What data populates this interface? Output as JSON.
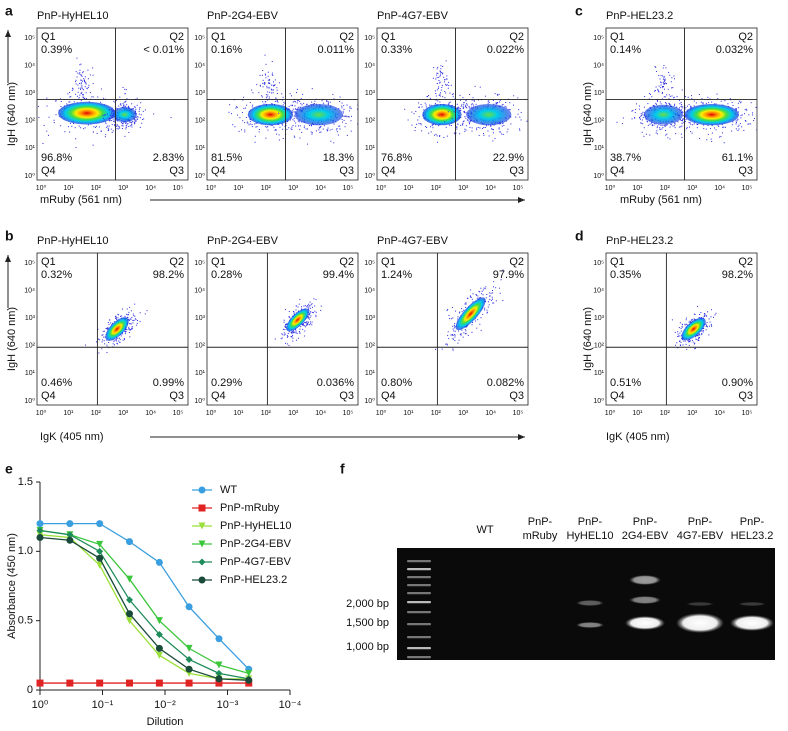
{
  "quadrant_names": [
    "Q1",
    "Q2",
    "Q3",
    "Q4"
  ],
  "flow_ticks": [
    "10⁰",
    "10¹",
    "10²",
    "10³",
    "10⁴",
    "10⁵"
  ],
  "panels": [
    {
      "letter": "a",
      "x_label": "mRuby (561 nm)",
      "y_label": "IgH (640 nm)",
      "plots": [
        {
          "title": "PnP-HyHEL10",
          "q1": "0.39%",
          "q2": "< 0.01%",
          "q3": "2.83%",
          "q4": "96.8%"
        },
        {
          "title": "PnP-2G4-EBV",
          "q1": "0.16%",
          "q2": "0.011%",
          "q3": "18.3%",
          "q4": "81.5%"
        },
        {
          "title": "PnP-4G7-EBV",
          "q1": "0.33%",
          "q2": "0.022%",
          "q3": "22.9%",
          "q4": "76.8%"
        }
      ]
    },
    {
      "letter": "c",
      "x_label": "mRuby (561 nm)",
      "y_label": "IgH (640 nm)",
      "plots": [
        {
          "title": "PnP-HEL23.2",
          "q1": "0.14%",
          "q2": "0.032%",
          "q3": "61.1%",
          "q4": "38.7%"
        }
      ]
    },
    {
      "letter": "b",
      "x_label": "IgK (405 nm)",
      "y_label": "IgH (640 nm)",
      "plots": [
        {
          "title": "PnP-HyHEL10",
          "q1": "0.32%",
          "q2": "98.2%",
          "q3": "0.99%",
          "q4": "0.46%"
        },
        {
          "title": "PnP-2G4-EBV",
          "q1": "0.28%",
          "q2": "99.4%",
          "q3": "0.036%",
          "q4": "0.29%"
        },
        {
          "title": "PnP-4G7-EBV",
          "q1": "1.24%",
          "q2": "97.9%",
          "q3": "0.082%",
          "q4": "0.80%"
        }
      ]
    },
    {
      "letter": "d",
      "x_label": "IgK (405 nm)",
      "y_label": "IgH (640 nm)",
      "plots": [
        {
          "title": "PnP-HEL23.2",
          "q1": "0.35%",
          "q2": "98.2%",
          "q3": "0.90%",
          "q4": "0.51%"
        }
      ]
    }
  ],
  "chart_data": {
    "letter": "e",
    "type": "line",
    "x_label": "Dilution",
    "y_label": "Absorbance (450 nm)",
    "x": [
      1,
      0.333,
      0.111,
      0.037,
      0.0123,
      0.00412,
      0.00137,
      0.000457
    ],
    "xlim": [
      1,
      0.0001
    ],
    "xticks": [
      {
        "value": 1,
        "label": "10⁰"
      },
      {
        "value": 0.1,
        "label": "10⁻¹"
      },
      {
        "value": 0.01,
        "label": "10⁻²"
      },
      {
        "value": 0.001,
        "label": "10⁻³"
      },
      {
        "value": 0.0001,
        "label": "10⁻⁴"
      }
    ],
    "x_log": true,
    "ylim": [
      0,
      1.5
    ],
    "yticks": [
      0,
      0.5,
      {
        "value": 1,
        "label": "1.0"
      },
      1.5
    ],
    "series": [
      {
        "name": "WT",
        "color": "#3a9fe0",
        "marker": "circle",
        "values": [
          1.2,
          1.2,
          1.2,
          1.07,
          0.92,
          0.6,
          0.37,
          0.15
        ]
      },
      {
        "name": "PnP-mRuby",
        "color": "#e02424",
        "marker": "square",
        "values": [
          0.05,
          0.05,
          0.05,
          0.05,
          0.05,
          0.05,
          0.05,
          0.05
        ]
      },
      {
        "name": "PnP-HyHEL10",
        "color": "#9be03a",
        "marker": "triangle",
        "values": [
          1.12,
          1.1,
          0.9,
          0.5,
          0.25,
          0.12,
          0.08,
          0.08
        ]
      },
      {
        "name": "PnP-2G4-EBV",
        "color": "#3cc63c",
        "marker": "triangle",
        "values": [
          1.15,
          1.12,
          1.05,
          0.8,
          0.5,
          0.3,
          0.18,
          0.12
        ]
      },
      {
        "name": "PnP-4G7-EBV",
        "color": "#1e8c5a",
        "marker": "diamond",
        "values": [
          1.15,
          1.12,
          1.0,
          0.65,
          0.4,
          0.22,
          0.12,
          0.08
        ]
      },
      {
        "name": "PnP-HEL23.2",
        "color": "#1a4a3a",
        "marker": "circle",
        "values": [
          1.1,
          1.08,
          0.95,
          0.55,
          0.3,
          0.15,
          0.08,
          0.07
        ]
      }
    ]
  },
  "gel": {
    "letter": "f",
    "lanes": [
      [
        "WT"
      ],
      [
        "PnP-",
        "mRuby"
      ],
      [
        "PnP-",
        "HyHEL10"
      ],
      [
        "PnP-",
        "2G4-EBV"
      ],
      [
        "PnP-",
        "4G7-EBV"
      ],
      [
        "PnP-",
        "HEL23.2"
      ]
    ],
    "sizes": [
      "2,000 bp",
      "1,500 bp",
      "1,000 bp"
    ]
  }
}
